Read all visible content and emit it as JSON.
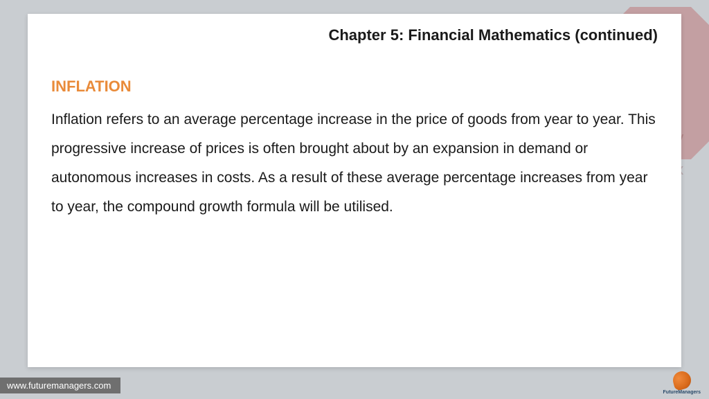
{
  "background": {
    "page_color": "#c9cdd1",
    "decoration_color": "#b84a4a",
    "decoration_opacity": 0.35,
    "math_symbols": [
      "∂",
      "dy",
      "dx"
    ]
  },
  "card": {
    "background_color": "#ffffff",
    "shadow": "0 2px 6px rgba(0,0,0,0.15)"
  },
  "chapter_title": {
    "text": "Chapter 5: Financial Mathematics (continued)",
    "color": "#1a1a1a",
    "fontsize_pt": 17,
    "font_weight": 700,
    "align": "right"
  },
  "section_heading": {
    "text": "INFLATION",
    "color": "#e98b3a",
    "fontsize_pt": 17,
    "font_weight": 700
  },
  "body": {
    "text": "Inflation refers to an average percentage increase in the price of goods from year to year. This progressive increase of prices is often brought about by an expansion in demand or autonomous increases in costs. As a result of these average percentage increases from year to year, the compound growth formula will be utilised.",
    "color": "#1a1a1a",
    "fontsize_pt": 16,
    "line_height": 2.0
  },
  "footer": {
    "url": "www.futuremanagers.com",
    "bar_color": "#6f6f6f",
    "text_color": "#ffffff",
    "fontsize_pt": 10
  },
  "logo": {
    "name": "FutureManagers",
    "swirl_colors": [
      "#f08a3c",
      "#d96a1a",
      "#b04e0e"
    ],
    "label_color": "#2a4a6a"
  }
}
